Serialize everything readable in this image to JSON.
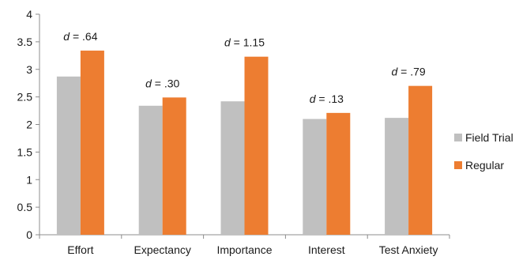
{
  "chart_data": {
    "type": "bar",
    "categories": [
      "Effort",
      "Expectancy",
      "Importance",
      "Interest",
      "Test Anxiety"
    ],
    "series": [
      {
        "name": "Field Trial",
        "color": "#c0c0c0",
        "values": [
          2.87,
          2.34,
          2.42,
          2.1,
          2.12
        ]
      },
      {
        "name": "Regular",
        "color": "#ed7d31",
        "values": [
          3.34,
          2.49,
          3.23,
          2.21,
          2.7
        ]
      }
    ],
    "annotations": [
      {
        "prefix": "d",
        "text": " = .64"
      },
      {
        "prefix": "d",
        "text": " = .30"
      },
      {
        "prefix": "d",
        "text": " = 1.15"
      },
      {
        "prefix": "d",
        "text": " = .13"
      },
      {
        "prefix": "d",
        "text": " = .79"
      }
    ],
    "ylim": [
      0,
      4
    ],
    "yticks": [
      "0",
      "0.5",
      "1",
      "1.5",
      "2",
      "2.5",
      "3",
      "3.5",
      "4"
    ],
    "ytick_values": [
      0,
      0.5,
      1,
      1.5,
      2,
      2.5,
      3,
      3.5,
      4
    ],
    "grid": false,
    "legend_position": "right"
  }
}
